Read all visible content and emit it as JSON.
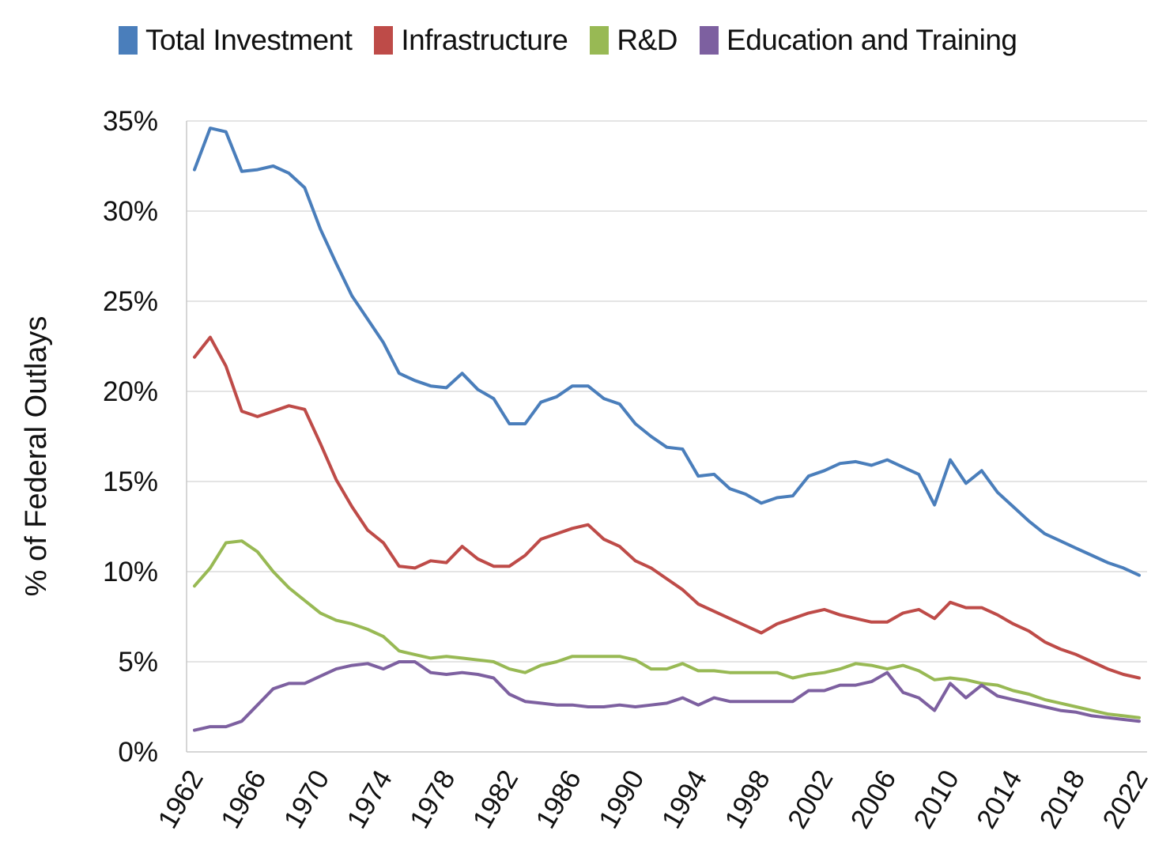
{
  "chart_data": {
    "type": "line",
    "title": "",
    "xlabel": "",
    "ylabel": "% of Federal Outlays",
    "ylim": [
      0,
      35
    ],
    "yticks": [
      "0%",
      "5%",
      "10%",
      "15%",
      "20%",
      "25%",
      "30%",
      "35%"
    ],
    "xticks": [
      "1962",
      "1966",
      "1970",
      "1974",
      "1978",
      "1982",
      "1986",
      "1990",
      "1994",
      "1998",
      "2002",
      "2006",
      "2010",
      "2014",
      "2018",
      "2022"
    ],
    "grid": "horizontal",
    "legend": "top",
    "x_start": 1962,
    "x_end": 2022,
    "series": [
      {
        "name": "Total Investment",
        "color": "#4a7ebb",
        "values": [
          32.3,
          34.6,
          34.4,
          32.2,
          32.3,
          32.5,
          32.1,
          31.3,
          29.0,
          27.1,
          25.3,
          24.0,
          22.7,
          21.0,
          20.6,
          20.3,
          20.2,
          21.0,
          20.1,
          19.6,
          18.2,
          18.2,
          19.4,
          19.7,
          20.3,
          20.3,
          19.6,
          19.3,
          18.2,
          17.5,
          16.9,
          16.8,
          15.3,
          15.4,
          14.6,
          14.3,
          13.8,
          14.1,
          14.2,
          15.3,
          15.6,
          16.0,
          16.1,
          15.9,
          16.2,
          15.8,
          15.4,
          13.7,
          16.2,
          14.9,
          15.6,
          14.4,
          13.6,
          12.8,
          12.1,
          11.7,
          11.3,
          10.9,
          10.5,
          10.2,
          9.8
        ]
      },
      {
        "name": "Infrastructure",
        "color": "#be4b48",
        "values": [
          21.9,
          23.0,
          21.4,
          18.9,
          18.6,
          18.9,
          19.2,
          19.0,
          17.1,
          15.1,
          13.6,
          12.3,
          11.6,
          10.3,
          10.2,
          10.6,
          10.5,
          11.4,
          10.7,
          10.3,
          10.3,
          10.9,
          11.8,
          12.1,
          12.4,
          12.6,
          11.8,
          11.4,
          10.6,
          10.2,
          9.6,
          9.0,
          8.2,
          7.8,
          7.4,
          7.0,
          6.6,
          7.1,
          7.4,
          7.7,
          7.9,
          7.6,
          7.4,
          7.2,
          7.2,
          7.7,
          7.9,
          7.4,
          8.3,
          8.0,
          8.0,
          7.6,
          7.1,
          6.7,
          6.1,
          5.7,
          5.4,
          5.0,
          4.6,
          4.3,
          4.1
        ]
      },
      {
        "name": "R&D",
        "color": "#98b954",
        "values": [
          9.2,
          10.2,
          11.6,
          11.7,
          11.1,
          10.0,
          9.1,
          8.4,
          7.7,
          7.3,
          7.1,
          6.8,
          6.4,
          5.6,
          5.4,
          5.2,
          5.3,
          5.2,
          5.1,
          5.0,
          4.6,
          4.4,
          4.8,
          5.0,
          5.3,
          5.3,
          5.3,
          5.3,
          5.1,
          4.6,
          4.6,
          4.9,
          4.5,
          4.5,
          4.4,
          4.4,
          4.4,
          4.4,
          4.1,
          4.3,
          4.4,
          4.6,
          4.9,
          4.8,
          4.6,
          4.8,
          4.5,
          4.0,
          4.1,
          4.0,
          3.8,
          3.7,
          3.4,
          3.2,
          2.9,
          2.7,
          2.5,
          2.3,
          2.1,
          2.0,
          1.9
        ]
      },
      {
        "name": "Education and Training",
        "color": "#7d60a0",
        "values": [
          1.2,
          1.4,
          1.4,
          1.7,
          2.6,
          3.5,
          3.8,
          3.8,
          4.2,
          4.6,
          4.8,
          4.9,
          4.6,
          5.0,
          5.0,
          4.4,
          4.3,
          4.4,
          4.3,
          4.1,
          3.2,
          2.8,
          2.7,
          2.6,
          2.6,
          2.5,
          2.5,
          2.6,
          2.5,
          2.6,
          2.7,
          3.0,
          2.6,
          3.0,
          2.8,
          2.8,
          2.8,
          2.8,
          2.8,
          3.4,
          3.4,
          3.7,
          3.7,
          3.9,
          4.4,
          3.3,
          3.0,
          2.3,
          3.8,
          3.0,
          3.7,
          3.1,
          2.9,
          2.7,
          2.5,
          2.3,
          2.2,
          2.0,
          1.9,
          1.8,
          1.7
        ]
      }
    ]
  }
}
